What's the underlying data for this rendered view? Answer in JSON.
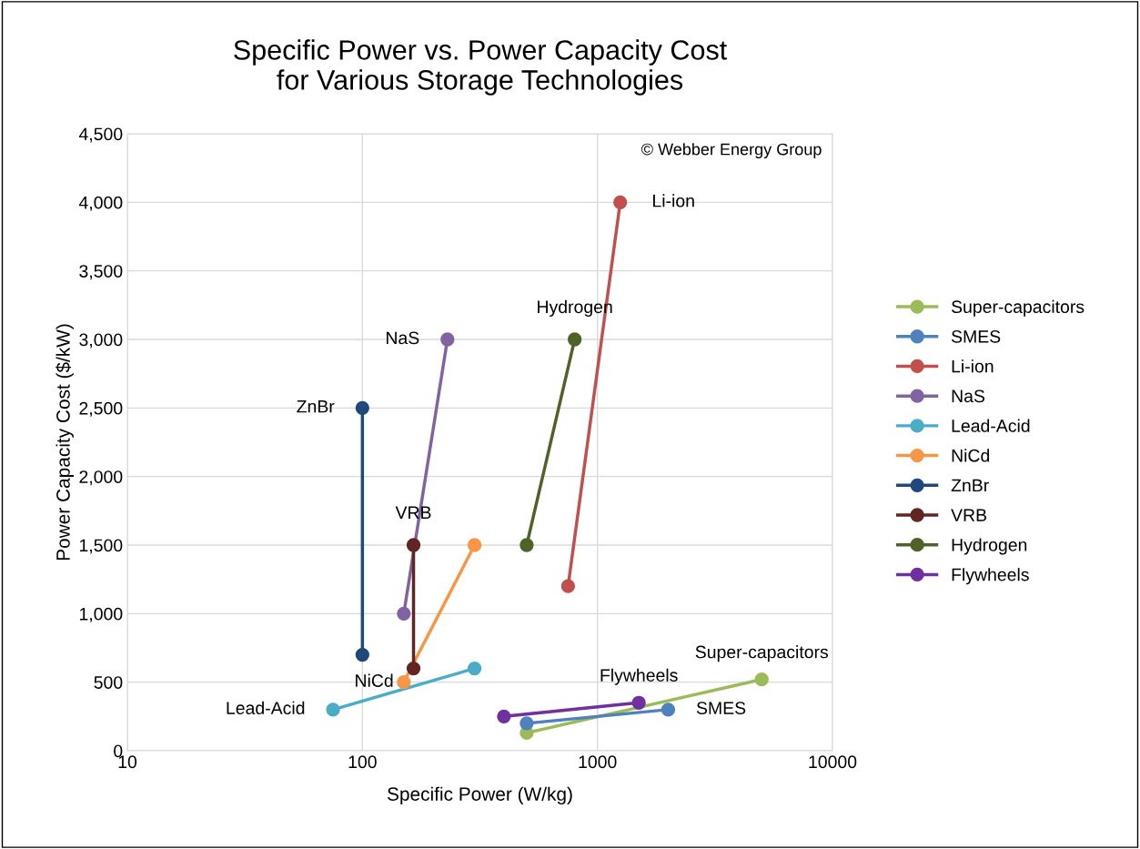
{
  "chart_data": {
    "type": "line",
    "title": "Specific Power vs. Power Capacity Cost\nfor Various Storage Technologies",
    "xlabel": "Specific Power (W/kg)",
    "ylabel": "Power Capacity Cost ($/kW)",
    "log": "x",
    "grid": true,
    "legend": "right",
    "marker": "circle",
    "line_style": "solid",
    "xlim": [
      10,
      10000
    ],
    "xticks": [
      10,
      100,
      1000,
      10000
    ],
    "ylim": [
      0,
      4500
    ],
    "yticks": [
      0,
      {
        "value": 500,
        "label": "500"
      },
      {
        "value": 1000,
        "label": "1,000"
      },
      {
        "value": 1500,
        "label": "1,500"
      },
      {
        "value": 2000,
        "label": "2,000"
      },
      {
        "value": 2500,
        "label": "2,500"
      },
      {
        "value": 3000,
        "label": "3,000"
      },
      {
        "value": 3500,
        "label": "3,500"
      },
      {
        "value": 4000,
        "label": "4,000"
      },
      {
        "value": 4500,
        "label": "4,500"
      }
    ],
    "series": [
      {
        "name": "Super-capacitors",
        "color": "#9bbb59",
        "x": [
          500,
          5000
        ],
        "values": [
          130,
          520
        ]
      },
      {
        "name": "SMES",
        "color": "#4f81bd",
        "x": [
          500,
          2000
        ],
        "values": [
          200,
          300
        ]
      },
      {
        "name": "Li-ion",
        "color": "#c0504d",
        "x": [
          750,
          1250
        ],
        "values": [
          1200,
          4000
        ]
      },
      {
        "name": "NaS",
        "color": "#8064a2",
        "x": [
          150,
          230
        ],
        "values": [
          1000,
          3000
        ]
      },
      {
        "name": "Lead-Acid",
        "color": "#4bacc6",
        "x": [
          75,
          300
        ],
        "values": [
          300,
          600
        ]
      },
      {
        "name": "NiCd",
        "color": "#f79646",
        "x": [
          150,
          300
        ],
        "values": [
          500,
          1500
        ]
      },
      {
        "name": "ZnBr",
        "color": "#1f497d",
        "x": [
          100,
          100
        ],
        "values": [
          700,
          2500
        ]
      },
      {
        "name": "VRB",
        "color": "#632523",
        "x": [
          165,
          165
        ],
        "values": [
          600,
          1500
        ]
      },
      {
        "name": "Hydrogen",
        "color": "#4f6228",
        "x": [
          500,
          800
        ],
        "values": [
          1500,
          3000
        ]
      },
      {
        "name": "Flywheels",
        "color": "#7030a0",
        "x": [
          400,
          1500
        ],
        "values": [
          250,
          350
        ]
      }
    ],
    "annotations": [
      "© Webber Energy Group",
      {
        "text": "Li-ion",
        "x": 1250,
        "y": 4000
      },
      {
        "text": "NaS",
        "x": 230,
        "y": 3000
      },
      {
        "text": "Hydrogen",
        "x": 800,
        "y": 3000
      },
      {
        "text": "ZnBr",
        "x": 100,
        "y": 2500
      },
      {
        "text": "VRB",
        "x": 165,
        "y": 1500
      },
      {
        "text": "NiCd",
        "x": 150,
        "y": 500
      },
      {
        "text": "Lead-Acid",
        "x": 75,
        "y": 300
      },
      {
        "text": "Flywheels",
        "x": 1500,
        "y": 350
      },
      {
        "text": "SMES",
        "x": 2000,
        "y": 300
      },
      {
        "text": "Super-capacitors",
        "x": 5000,
        "y": 520
      }
    ]
  }
}
